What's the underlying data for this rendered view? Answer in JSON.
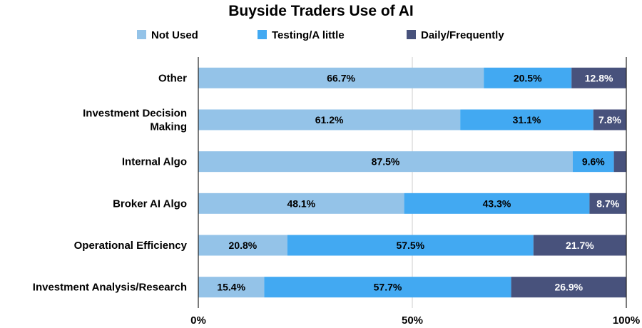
{
  "chart_data": {
    "type": "bar",
    "orientation": "horizontal",
    "stacked": "percent",
    "title": "Buyside Traders Use of AI",
    "legend_position": "top",
    "grid": "vertical gridline at 50%",
    "xlim": [
      0,
      100
    ],
    "x_ticks": [
      "0%",
      "50%",
      "100%"
    ],
    "categories": [
      "Other",
      "Investment Decision Making",
      "Internal Algo",
      "Broker AI Algo",
      "Operational Efficiency",
      "Investment Analysis/Research"
    ],
    "category_label_lines": [
      [
        "Other"
      ],
      [
        "Investment Decision",
        "Making"
      ],
      [
        "Internal Algo"
      ],
      [
        "Broker AI Algo"
      ],
      [
        "Operational Efficiency"
      ],
      [
        "Investment Analysis/Research"
      ]
    ],
    "series": [
      {
        "name": "Not Used",
        "color": "#94c3e8",
        "values": [
          66.7,
          61.2,
          87.5,
          48.1,
          20.8,
          15.4
        ],
        "labels": [
          "66.7%",
          "61.2%",
          "87.5%",
          "48.1%",
          "20.8%",
          "15.4%"
        ]
      },
      {
        "name": "Testing/A little",
        "color": "#42a9f2",
        "values": [
          20.5,
          31.1,
          9.6,
          43.3,
          57.5,
          57.7
        ],
        "labels": [
          "20.5%",
          "31.1%",
          "9.6%",
          "43.3%",
          "57.5%",
          "57.7%"
        ]
      },
      {
        "name": "Daily/Frequently",
        "color": "#48527c",
        "values": [
          12.8,
          7.8,
          2.9,
          8.7,
          21.7,
          26.9
        ],
        "labels": [
          "12.8%",
          "7.8%",
          "",
          "8.7%",
          "21.7%",
          "26.9%"
        ]
      }
    ]
  }
}
